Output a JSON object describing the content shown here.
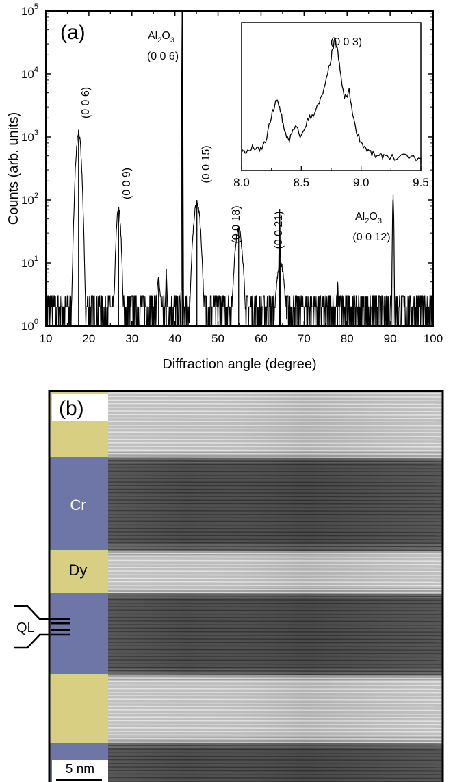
{
  "panel_a": {
    "label": "(a)",
    "chart_data": {
      "type": "line",
      "title": "",
      "xlabel": "Diffraction angle (degree)",
      "ylabel": "Counts (arb. units)",
      "xlim": [
        10,
        100
      ],
      "ylim": [
        1,
        100000
      ],
      "yscale": "log",
      "grid": false,
      "xticks": [
        "10",
        "20",
        "30",
        "40",
        "50",
        "60",
        "70",
        "80",
        "90",
        "100"
      ],
      "yticks": [
        {
          "base": "10",
          "exp": "0"
        },
        {
          "base": "10",
          "exp": "1"
        },
        {
          "base": "10",
          "exp": "2"
        },
        {
          "base": "10",
          "exp": "3"
        },
        {
          "base": "10",
          "exp": "4"
        },
        {
          "base": "10",
          "exp": "5"
        }
      ],
      "peaks": [
        {
          "x": 17.6,
          "y": 1300,
          "width": 0.9,
          "label": "(0 0 6)"
        },
        {
          "x": 26.9,
          "y": 78,
          "width": 0.8,
          "label": "(0 0 9)"
        },
        {
          "x": 36.2,
          "y": 6,
          "width": 0.7,
          "label": ""
        },
        {
          "x": 38.0,
          "y": 8,
          "width": 0.25,
          "label": ""
        },
        {
          "x": 41.7,
          "y": 100000,
          "width": 0.12,
          "label": ""
        },
        {
          "x": 45.1,
          "y": 100,
          "width": 1.2,
          "label": "(0 0 15)"
        },
        {
          "x": 54.8,
          "y": 38,
          "width": 1.3,
          "label": "(0 0 18)"
        },
        {
          "x": 64.3,
          "y": 72,
          "width": 0.18,
          "label": ""
        },
        {
          "x": 64.5,
          "y": 11,
          "width": 1.4,
          "label": "(0 0 21)"
        },
        {
          "x": 77.8,
          "y": 5,
          "width": 0.3,
          "label": ""
        },
        {
          "x": 90.7,
          "y": 120,
          "width": 0.25,
          "label": ""
        }
      ],
      "substrate_labels": [
        {
          "name": "Al",
          "sub1": "2",
          "mid": "O",
          "sub2": "3",
          "index": "(0 0 6)"
        },
        {
          "name": "Al",
          "sub1": "2",
          "mid": "O",
          "sub2": "3",
          "index": "(0 0 12)"
        }
      ],
      "inset": {
        "xlim": [
          8.0,
          9.5
        ],
        "xticks": [
          "8.0",
          "8.5",
          "9.0",
          "9.5"
        ],
        "label": "(0 0 3)",
        "x": [
          8.0,
          8.05,
          8.1,
          8.15,
          8.2,
          8.25,
          8.28,
          8.3,
          8.33,
          8.36,
          8.4,
          8.45,
          8.5,
          8.55,
          8.6,
          8.65,
          8.7,
          8.75,
          8.78,
          8.8,
          8.83,
          8.86,
          8.9,
          8.95,
          9.0,
          9.05,
          9.1,
          9.15,
          9.2,
          9.3,
          9.4,
          9.5
        ],
        "y": [
          0.12,
          0.1,
          0.14,
          0.11,
          0.18,
          0.38,
          0.48,
          0.5,
          0.42,
          0.25,
          0.2,
          0.3,
          0.22,
          0.35,
          0.4,
          0.48,
          0.62,
          0.85,
          0.98,
          0.92,
          0.7,
          0.52,
          0.58,
          0.3,
          0.18,
          0.12,
          0.08,
          0.06,
          0.08,
          0.05,
          0.07,
          0.03
        ]
      }
    }
  },
  "panel_b": {
    "label": "(b)",
    "layers": [
      "Dy",
      "Cr",
      "Dy",
      "Cr",
      "Dy",
      "Cr"
    ],
    "layer_labels": {
      "cr": "Cr",
      "dy": "Dy"
    },
    "annotation": "QL",
    "scale_bar": "5 nm",
    "colors": {
      "dy": "#d8cf82",
      "cr": "#6d76a6"
    }
  }
}
